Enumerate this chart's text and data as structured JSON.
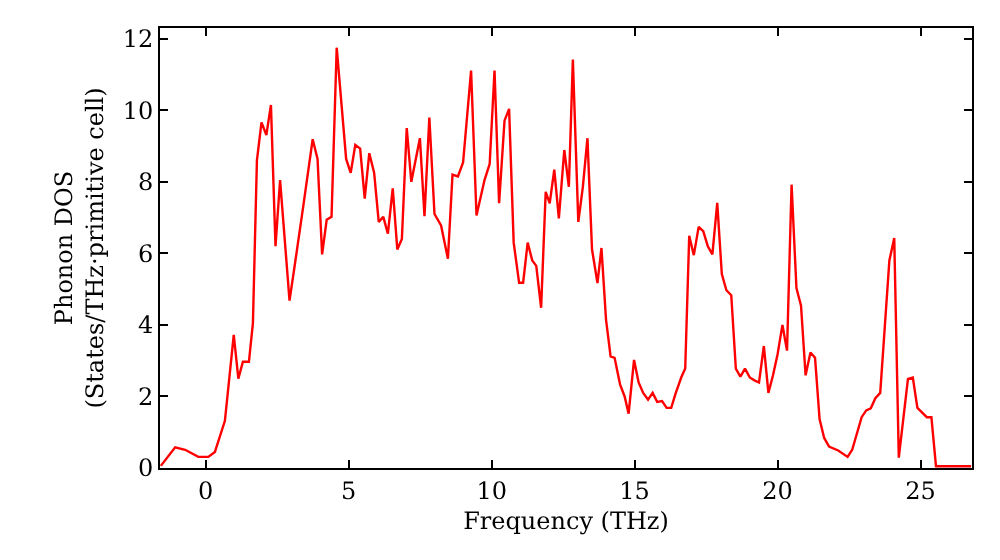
{
  "chart_data": {
    "type": "line",
    "xlabel": "Frequency (THz)",
    "ylabel": "Phonon DOS\n(States/THz·primitive cell)",
    "xlim": [
      -1.6,
      26.8
    ],
    "ylim": [
      0,
      12.3
    ],
    "xticks": [
      0,
      5,
      10,
      15,
      20,
      25
    ],
    "yticks": [
      0,
      2,
      4,
      6,
      8,
      10,
      12
    ],
    "marker": "none",
    "line_style": "solid",
    "x": [
      -1.57,
      -1.07,
      -0.72,
      -0.26,
      0.09,
      0.32,
      0.67,
      0.98,
      1.14,
      1.3,
      1.51,
      1.65,
      1.79,
      1.95,
      2.12,
      2.28,
      2.44,
      2.6,
      2.93,
      3.12,
      3.42,
      3.74,
      3.91,
      4.07,
      4.23,
      4.4,
      4.58,
      4.91,
      5.07,
      5.23,
      5.4,
      5.56,
      5.72,
      5.89,
      6.05,
      6.21,
      6.37,
      6.54,
      6.7,
      6.86,
      7.03,
      7.19,
      7.49,
      7.65,
      7.82,
      8.0,
      8.23,
      8.47,
      8.63,
      8.82,
      9.0,
      9.28,
      9.47,
      9.75,
      9.93,
      10.1,
      10.26,
      10.45,
      10.61,
      10.77,
      10.96,
      11.1,
      11.26,
      11.42,
      11.56,
      11.73,
      11.89,
      12.03,
      12.19,
      12.35,
      12.54,
      12.7,
      12.84,
      13.03,
      13.19,
      13.35,
      13.51,
      13.7,
      13.84,
      14.0,
      14.16,
      14.3,
      14.49,
      14.65,
      14.79,
      14.98,
      15.14,
      15.3,
      15.47,
      15.63,
      15.79,
      15.96,
      16.12,
      16.28,
      16.44,
      16.63,
      16.77,
      16.91,
      17.07,
      17.24,
      17.4,
      17.56,
      17.72,
      17.89,
      18.05,
      18.21,
      18.38,
      18.54,
      18.7,
      18.86,
      19.03,
      19.19,
      19.35,
      19.52,
      19.68,
      19.84,
      20.0,
      20.17,
      20.33,
      20.49,
      20.66,
      20.82,
      20.98,
      21.15,
      21.31,
      21.47,
      21.63,
      21.8,
      22.12,
      22.45,
      22.61,
      22.94,
      23.1,
      23.26,
      23.42,
      23.59,
      23.91,
      24.08,
      24.24,
      24.56,
      24.73,
      24.89,
      25.22,
      25.38,
      25.54,
      26.77
    ],
    "series": [
      {
        "color": "#ff0000",
        "values": [
          0.06,
          0.58,
          0.51,
          0.31,
          0.31,
          0.45,
          1.32,
          3.72,
          2.5,
          2.97,
          2.97,
          4.05,
          8.6,
          9.66,
          9.31,
          10.15,
          6.2,
          8.05,
          4.68,
          5.71,
          7.37,
          9.19,
          8.64,
          5.97,
          6.94,
          7.02,
          11.75,
          8.64,
          8.25,
          9.03,
          8.93,
          7.53,
          8.8,
          8.25,
          6.88,
          7.02,
          6.55,
          7.82,
          6.11,
          6.4,
          9.5,
          8.0,
          9.22,
          7.04,
          9.8,
          7.1,
          6.78,
          5.85,
          8.2,
          8.15,
          8.54,
          11.11,
          7.06,
          8.05,
          8.5,
          11.11,
          7.4,
          9.71,
          10.04,
          6.3,
          5.18,
          5.18,
          6.3,
          5.8,
          5.65,
          4.48,
          7.72,
          7.4,
          8.34,
          6.98,
          8.89,
          7.86,
          11.42,
          6.88,
          7.86,
          9.22,
          6.11,
          5.17,
          6.15,
          4.15,
          3.12,
          3.08,
          2.34,
          2.0,
          1.52,
          3.02,
          2.39,
          2.1,
          1.91,
          2.1,
          1.85,
          1.87,
          1.68,
          1.68,
          2.1,
          2.53,
          2.78,
          6.49,
          5.95,
          6.74,
          6.62,
          6.2,
          5.97,
          7.41,
          5.42,
          4.97,
          4.83,
          2.78,
          2.55,
          2.78,
          2.53,
          2.45,
          2.39,
          3.41,
          2.1,
          2.59,
          3.18,
          4.0,
          3.28,
          7.92,
          5.03,
          4.54,
          2.59,
          3.23,
          3.08,
          1.36,
          0.84,
          0.6,
          0.49,
          0.31,
          0.51,
          1.42,
          1.61,
          1.67,
          1.95,
          2.1,
          5.8,
          6.43,
          0.29,
          2.49,
          2.53,
          1.68,
          1.42,
          1.42,
          0.05,
          0.05
        ]
      }
    ]
  }
}
